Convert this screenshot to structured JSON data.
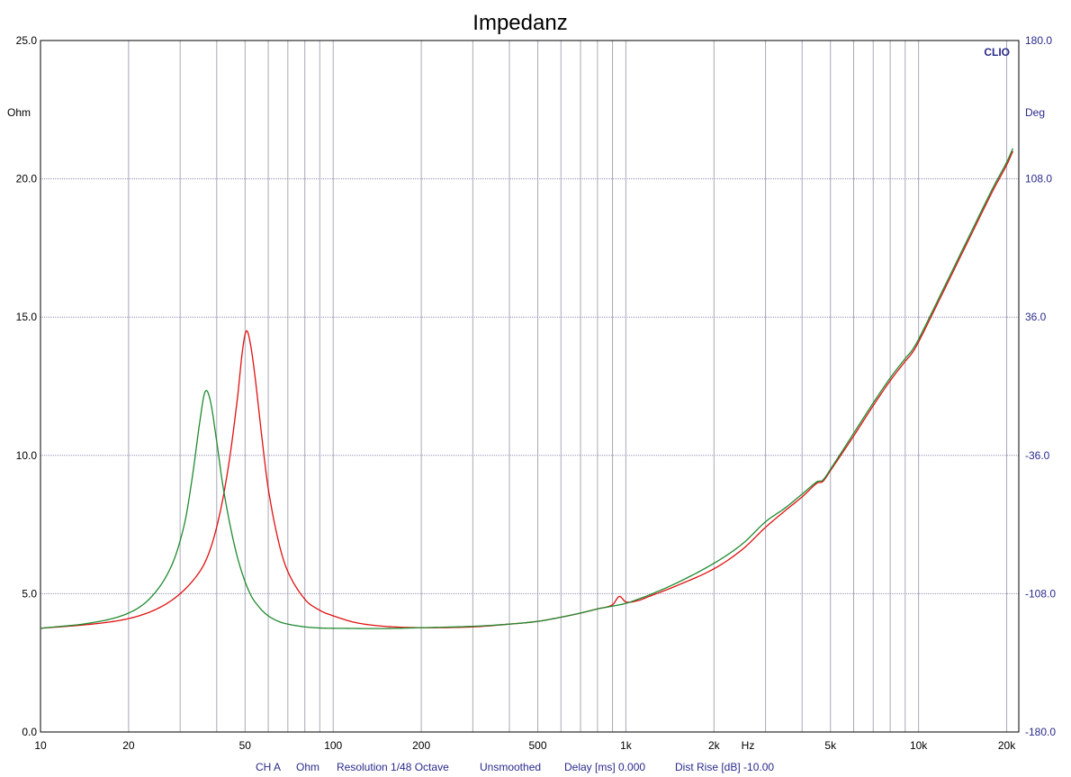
{
  "chart_data": {
    "type": "line",
    "title": "Impedanz",
    "brand": "CLIO",
    "xscale": "log",
    "xlim": [
      10,
      22000
    ],
    "ylim": [
      0,
      25
    ],
    "y2lim": [
      -180,
      180
    ],
    "ylabel": "Ohm",
    "y2label": "Deg",
    "xunit": "Hz",
    "grid": true,
    "yticks": [
      {
        "value": 0,
        "label": "0.0"
      },
      {
        "value": 5,
        "label": "5.0"
      },
      {
        "value": 10,
        "label": "10.0"
      },
      {
        "value": 15,
        "label": "15.0"
      },
      {
        "value": 20,
        "label": "20.0"
      },
      {
        "value": 25,
        "label": "25.0"
      }
    ],
    "y2ticks": [
      {
        "value": -180,
        "label": "-180.0"
      },
      {
        "value": -108,
        "label": "-108.0"
      },
      {
        "value": -36,
        "label": "-36.0"
      },
      {
        "value": 36,
        "label": "36.0"
      },
      {
        "value": 108,
        "label": "108.0"
      },
      {
        "value": 180,
        "label": "180.0"
      }
    ],
    "xticks": [
      {
        "value": 10,
        "label": "10"
      },
      {
        "value": 20,
        "label": "20"
      },
      {
        "value": 50,
        "label": "50"
      },
      {
        "value": 100,
        "label": "100"
      },
      {
        "value": 200,
        "label": "200"
      },
      {
        "value": 500,
        "label": "500"
      },
      {
        "value": 1000,
        "label": "1k"
      },
      {
        "value": 2000,
        "label": "2k"
      },
      {
        "value": 5000,
        "label": "5k"
      },
      {
        "value": 10000,
        "label": "10k"
      },
      {
        "value": 20000,
        "label": "20k"
      }
    ],
    "series": [
      {
        "color": "#e01010",
        "x": [
          10,
          15,
          20,
          25,
          30,
          35,
          38,
          41,
          44,
          47,
          49,
          50.5,
          52,
          54,
          57,
          60,
          65,
          70,
          80,
          90,
          100,
          120,
          150,
          200,
          300,
          400,
          500,
          600,
          700,
          800,
          900,
          950,
          1000,
          1100,
          1200,
          1500,
          2000,
          2500,
          3000,
          3500,
          4000,
          4500,
          4700,
          5000,
          6000,
          7000,
          8000,
          9000,
          9500,
          10000,
          12000,
          15000,
          18000,
          20000,
          21000
        ],
        "y": [
          3.75,
          3.9,
          4.1,
          4.45,
          5.0,
          5.8,
          6.6,
          7.9,
          9.7,
          12.0,
          13.8,
          14.5,
          14.1,
          12.9,
          10.7,
          8.8,
          6.9,
          5.8,
          4.8,
          4.4,
          4.2,
          3.95,
          3.82,
          3.77,
          3.8,
          3.9,
          4.0,
          4.15,
          4.3,
          4.45,
          4.6,
          4.9,
          4.7,
          4.75,
          4.9,
          5.3,
          5.9,
          6.6,
          7.4,
          8.0,
          8.5,
          9.0,
          9.05,
          9.45,
          10.7,
          11.8,
          12.7,
          13.4,
          13.7,
          14.1,
          15.8,
          17.9,
          19.6,
          20.5,
          21.0
        ]
      },
      {
        "color": "#208a30",
        "x": [
          10,
          15,
          20,
          24,
          28,
          31,
          33,
          35,
          36.5,
          38,
          40,
          42,
          45,
          48,
          52,
          56,
          60,
          65,
          70,
          80,
          90,
          100,
          150,
          200,
          300,
          400,
          500,
          600,
          700,
          800,
          900,
          1000,
          1100,
          1200,
          1500,
          2000,
          2500,
          3000,
          3500,
          4000,
          4500,
          4700,
          5000,
          6000,
          7000,
          8000,
          9000,
          9500,
          10000,
          12000,
          15000,
          18000,
          20000,
          21000
        ],
        "y": [
          3.75,
          3.95,
          4.3,
          4.9,
          6.0,
          7.5,
          9.2,
          11.2,
          12.3,
          12.0,
          10.5,
          8.9,
          7.2,
          6.0,
          5.0,
          4.5,
          4.2,
          4.0,
          3.9,
          3.8,
          3.76,
          3.75,
          3.74,
          3.77,
          3.82,
          3.9,
          4.0,
          4.15,
          4.3,
          4.45,
          4.55,
          4.65,
          4.8,
          4.95,
          5.4,
          6.1,
          6.8,
          7.6,
          8.1,
          8.6,
          9.05,
          9.1,
          9.5,
          10.8,
          11.9,
          12.8,
          13.5,
          13.8,
          14.2,
          15.9,
          18.0,
          19.7,
          20.6,
          21.1
        ]
      }
    ]
  },
  "footer": {
    "channel": "CH A",
    "unit": "Ohm",
    "resolution": "Resolution 1/48 Octave",
    "smoothing": "Unsmoothed",
    "delay": "Delay [ms] 0.000",
    "dist_rise": "Dist Rise [dB] -10.00"
  }
}
